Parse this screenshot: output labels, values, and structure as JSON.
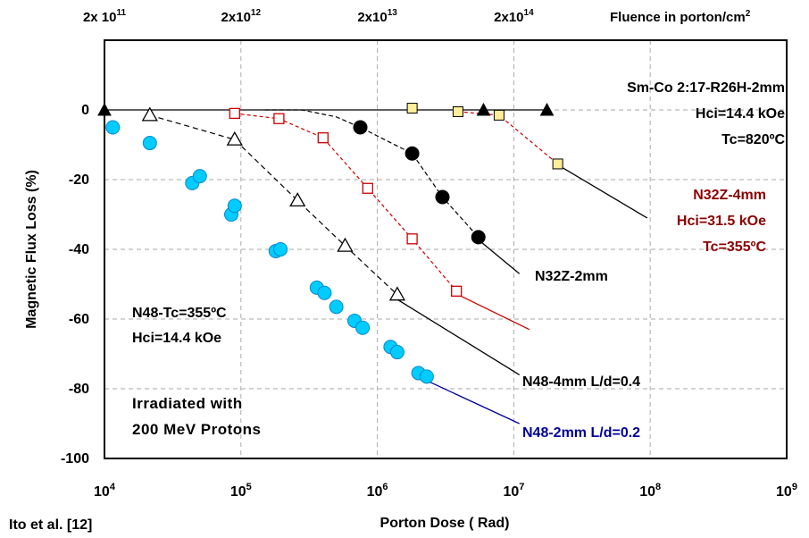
{
  "chart_data": {
    "type": "scatter",
    "xscale": "log",
    "ylabel": "Magnetic Flux Loss (%)",
    "xlabel": "Porton Dose ( Rad)",
    "xlim": [
      10000,
      1000000000
    ],
    "ylim": [
      -100,
      20
    ],
    "grid": true,
    "y_ticks": [
      {
        "v": 0,
        "label": "0"
      },
      {
        "v": -20,
        "label": "-20"
      },
      {
        "v": -40,
        "label": "-40"
      },
      {
        "v": -60,
        "label": "-60"
      },
      {
        "v": -80,
        "label": "-80"
      },
      {
        "v": -100,
        "label": "-100"
      }
    ],
    "x_ticks": [
      {
        "v": 10000,
        "base": "10",
        "exp": "4"
      },
      {
        "v": 100000,
        "base": "10",
        "exp": "5"
      },
      {
        "v": 1000000,
        "base": "10",
        "exp": "6"
      },
      {
        "v": 10000000,
        "base": "10",
        "exp": "7"
      },
      {
        "v": 100000000,
        "base": "10",
        "exp": "8"
      },
      {
        "v": 1000000000,
        "base": "10",
        "exp": "9"
      }
    ],
    "top_axis": {
      "title": "Fluence in porton/cm",
      "title_sup": "2",
      "ticks": [
        {
          "v": 10000,
          "base": "2x 10",
          "exp": "11"
        },
        {
          "v": 100000,
          "base": "2x10",
          "exp": "12"
        },
        {
          "v": 1000000,
          "base": "2x10",
          "exp": "13"
        },
        {
          "v": 10000000,
          "base": "2x10",
          "exp": "14"
        }
      ]
    },
    "series": [
      {
        "key": "n48_2mm",
        "marker": "circle",
        "color": "#00CCFF",
        "points": [
          [
            11500,
            -5
          ],
          [
            21500,
            -9.5
          ],
          [
            44000,
            -21
          ],
          [
            50000,
            -19
          ],
          [
            85000,
            -30
          ],
          [
            90000,
            -27.5
          ],
          [
            180000,
            -40.5
          ],
          [
            195000,
            -40
          ],
          [
            360000,
            -51
          ],
          [
            410000,
            -52.5
          ],
          [
            500000,
            -56.5
          ],
          [
            680000,
            -60.5
          ],
          [
            780000,
            -62.5
          ],
          [
            1250000,
            -68
          ],
          [
            1400000,
            -69.5
          ],
          [
            2000000,
            -75.5
          ],
          [
            2300000,
            -76.5
          ]
        ]
      },
      {
        "key": "n48_4mm",
        "marker": "triangle-open",
        "color": "#ffffff",
        "points": [
          [
            21500,
            -1.5
          ],
          [
            90000,
            -8.5
          ],
          [
            260000,
            -26
          ],
          [
            580000,
            -39
          ],
          [
            1400000,
            -53
          ]
        ]
      },
      {
        "key": "n32z_4mm",
        "marker": "square-open",
        "color": "#ffffff",
        "points": [
          [
            90000,
            -1
          ],
          [
            190000,
            -2.5
          ],
          [
            400000,
            -8
          ],
          [
            850000,
            -22.5
          ],
          [
            1800000,
            -37
          ],
          [
            3800000,
            -52
          ]
        ]
      },
      {
        "key": "n32z_2mm",
        "marker": "circle-filled",
        "color": "#000000",
        "points": [
          [
            750000,
            -5
          ],
          [
            1800000,
            -12.5
          ],
          [
            3000000,
            -25
          ],
          [
            5500000,
            -36.5
          ]
        ]
      },
      {
        "key": "smco",
        "marker": "triangle-filled",
        "color": "#000000",
        "points": [
          [
            10000,
            0
          ],
          [
            6000000,
            0
          ],
          [
            17500000,
            0
          ]
        ]
      },
      {
        "key": "smco_sq",
        "marker": "square-yellow",
        "color": "#FFEE99",
        "points": [
          [
            1800000,
            0.5
          ],
          [
            3900000,
            -0.5
          ],
          [
            7800000,
            -1.5
          ],
          [
            21000000,
            -15.5
          ]
        ]
      }
    ],
    "fit_lines": [
      {
        "color": "#000000",
        "dash": "6,4",
        "points": [
          [
            21500,
            -1.5
          ],
          [
            90000,
            -8.5
          ],
          [
            260000,
            -26
          ],
          [
            580000,
            -39
          ],
          [
            1400000,
            -53
          ]
        ]
      },
      {
        "color": "#CC0000",
        "dash": "4,3",
        "points": [
          [
            90000,
            -1
          ],
          [
            190000,
            -2.5
          ],
          [
            400000,
            -8
          ],
          [
            850000,
            -22.5
          ],
          [
            1800000,
            -37
          ],
          [
            3800000,
            -52
          ]
        ]
      },
      {
        "color": "#000000",
        "dash": "5,3",
        "points": [
          [
            150000,
            0
          ],
          [
            280000,
            0
          ],
          [
            500000,
            -2
          ],
          [
            750000,
            -5
          ],
          [
            1800000,
            -12.5
          ],
          [
            3000000,
            -25
          ],
          [
            5500000,
            -36.5
          ]
        ]
      },
      {
        "color": "#CC0000",
        "dash": "4,3",
        "points": [
          [
            3900000,
            -0.5
          ],
          [
            7800000,
            -1.5
          ],
          [
            21000000,
            -15.5
          ]
        ]
      },
      {
        "color": "#000000",
        "dash": "",
        "points": [
          [
            10000,
            0
          ],
          [
            17500000,
            0
          ]
        ]
      }
    ],
    "leaders": [
      {
        "color": "#000000",
        "points": [
          [
            1350000,
            -54
          ],
          [
            11000000,
            -76
          ]
        ]
      },
      {
        "color": "#CC0000",
        "points": [
          [
            3900000,
            -53
          ],
          [
            13000000,
            -63
          ]
        ]
      },
      {
        "color": "#000000",
        "points": [
          [
            5800000,
            -38
          ],
          [
            11000000,
            -47
          ]
        ]
      },
      {
        "color": "#000000",
        "points": [
          [
            21500000,
            -16
          ],
          [
            95000000,
            -31
          ]
        ]
      },
      {
        "color": "#000099",
        "points": [
          [
            2400000,
            -78
          ],
          [
            11000000,
            -90
          ]
        ]
      }
    ],
    "annotations": {
      "smco_line1": "Sm-Co 2:17-R26H-2mm",
      "smco_line2": "Hci=14.4 kOe",
      "smco_line3": "Tc=820ºC",
      "n32z4_line1": "N32Z-4mm",
      "n32z4_line2": "Hci=31.5 kOe",
      "n32z4_line3": "Tc=355ºC",
      "n32z2": "N32Z-2mm",
      "n48tc_line1": "N48-Tc=355ºC",
      "n48tc_line2": "Hci=14.4 kOe",
      "irr_line1": "Irradiated with",
      "irr_line2": "200 MeV Protons",
      "n48_4mm": "N48-4mm  L/d=0.4",
      "n48_2mm": "N48-2mm  L/d=0.2"
    },
    "citation": "Ito et al. [12]"
  }
}
